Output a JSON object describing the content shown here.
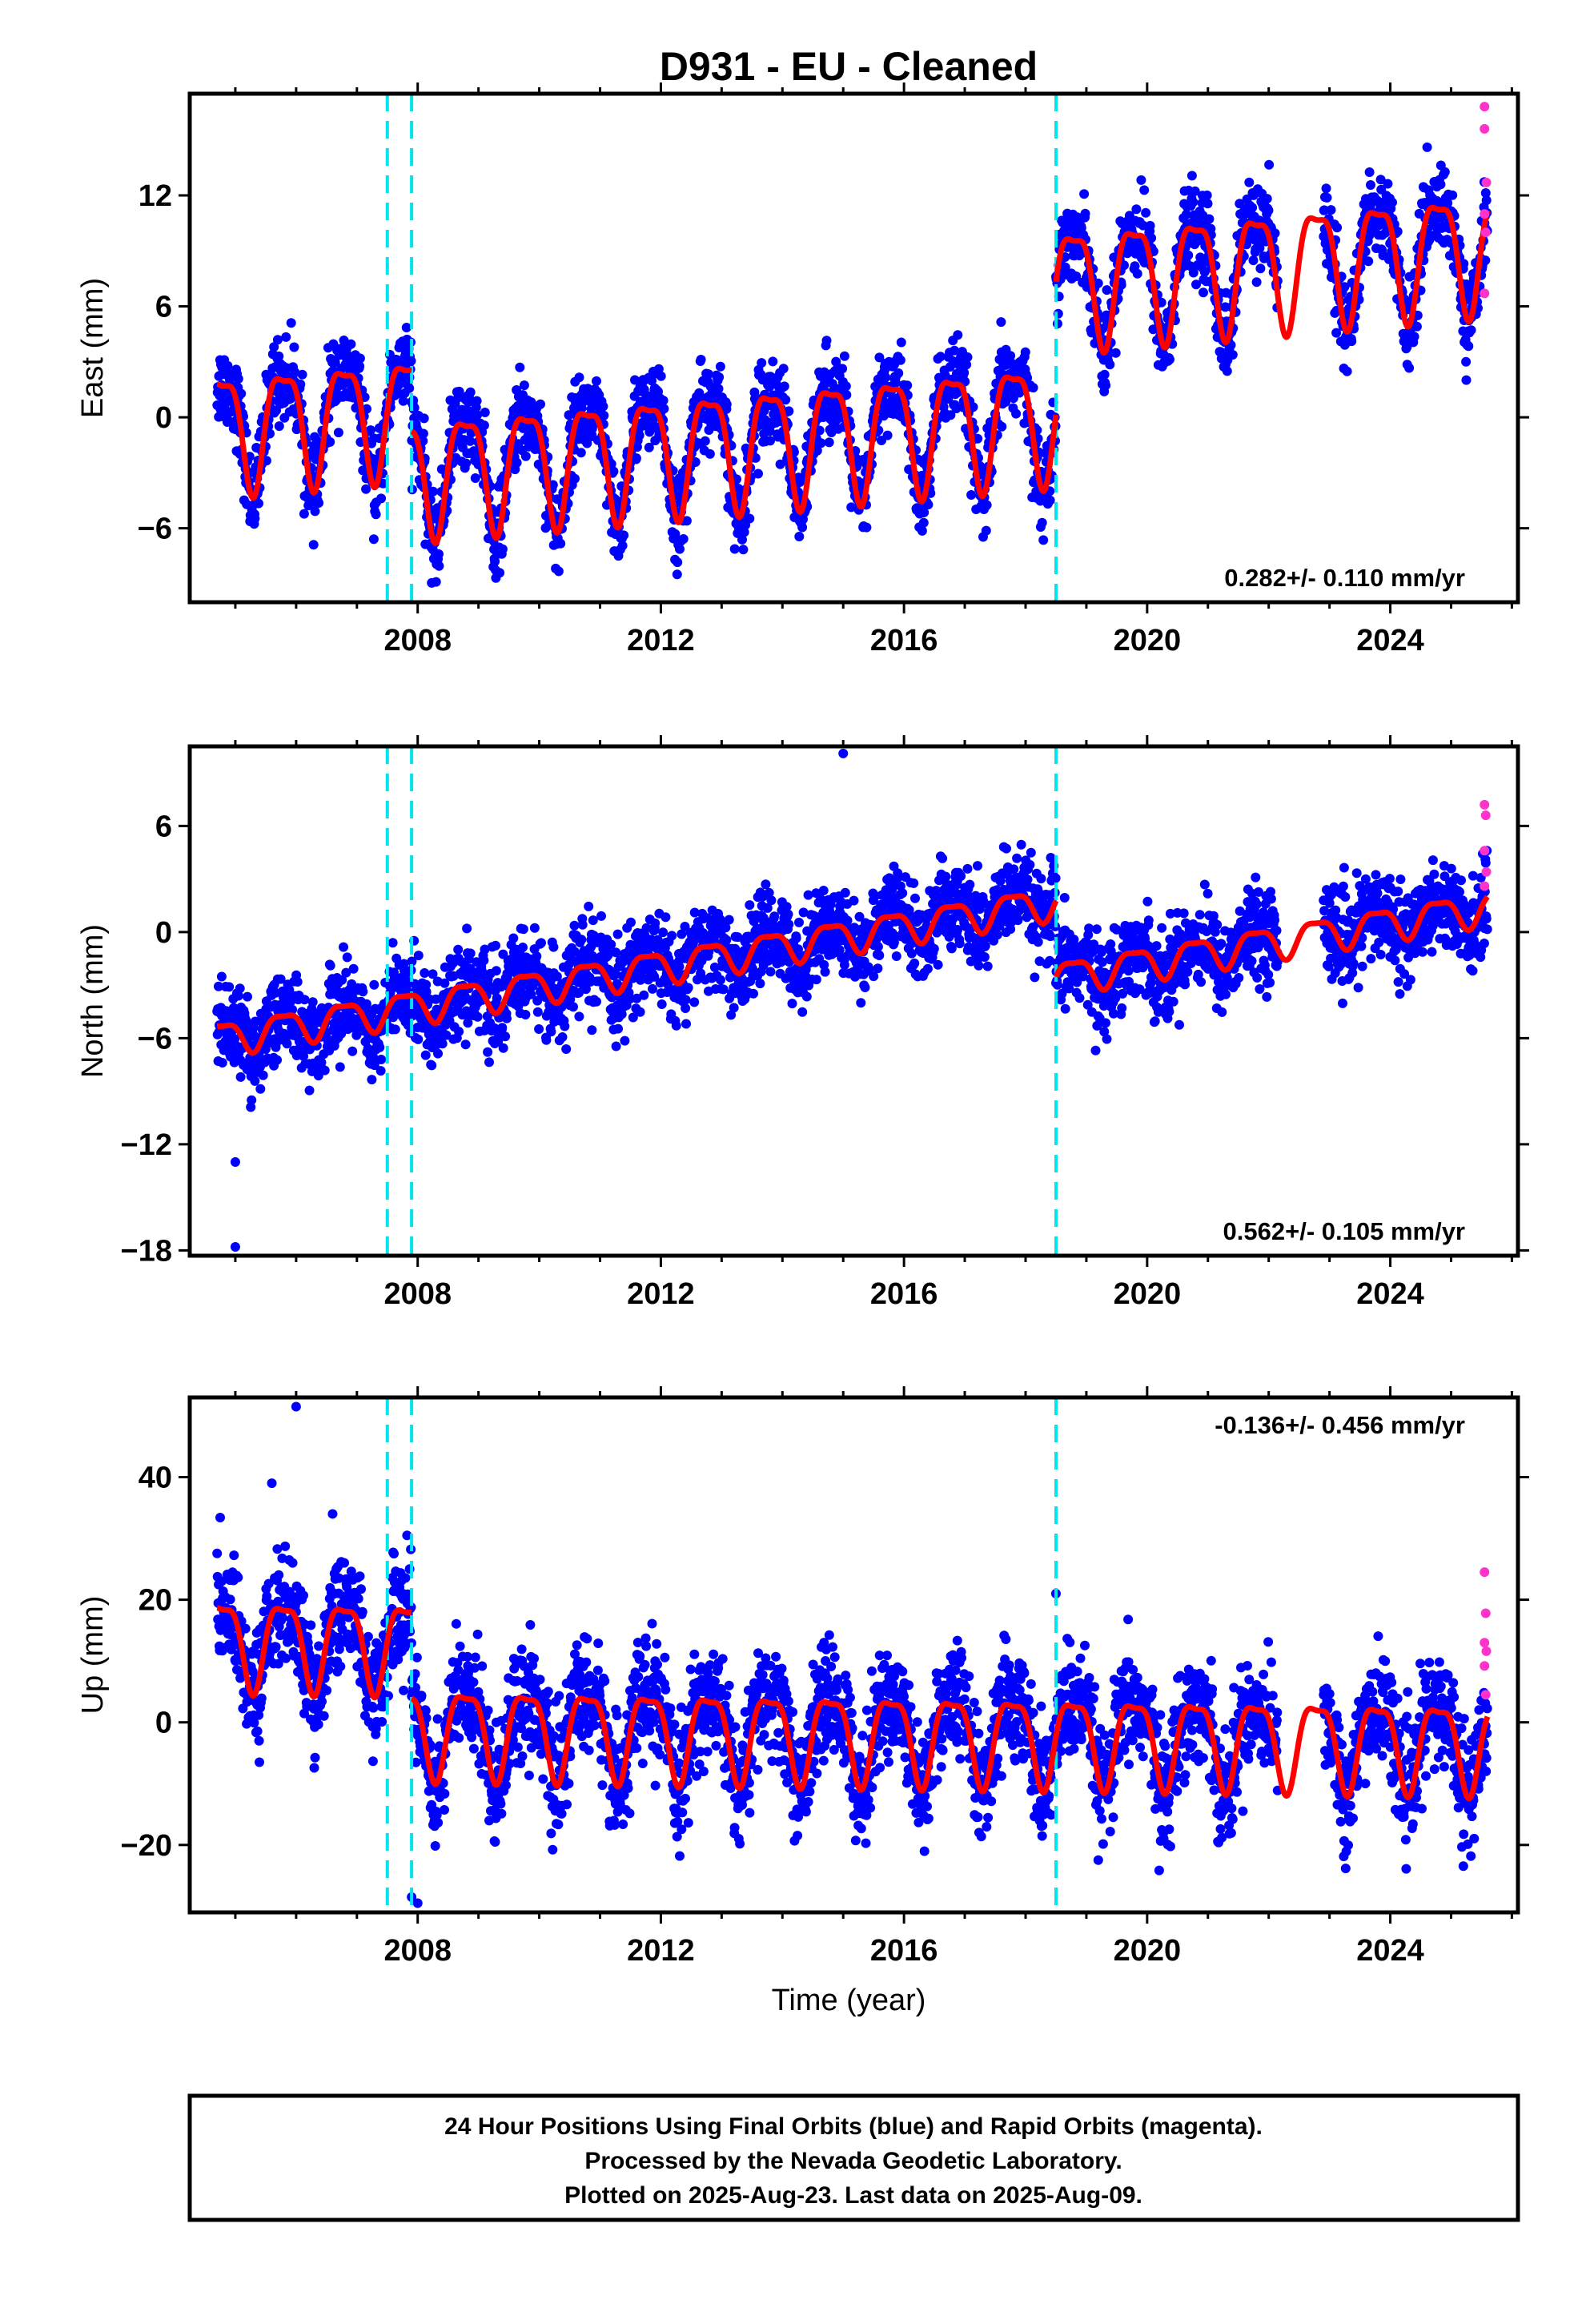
{
  "title": "D931  - EU - Cleaned",
  "xlabel": "Time (year)",
  "footer": {
    "line1": "24 Hour Positions Using Final Orbits (blue) and Rapid Orbits (magenta).",
    "line2": "Processed by the Nevada Geodetic Laboratory.",
    "line3": "Plotted on 2025-Aug-23. Last data on 2025-Aug-09."
  },
  "colors": {
    "final_orbits": "#0000ff",
    "rapid_orbits": "#ff33cc",
    "model_fit": "#ff0000",
    "steps": "#00e5ee"
  },
  "chart_data": [
    {
      "type": "scatter",
      "name": "east",
      "ylabel": "East (mm)",
      "rate_label": "0.282+/- 0.110 mm/yr",
      "xlim": [
        2004.25,
        2026.1
      ],
      "ylim": [
        -10,
        17.5
      ],
      "xticks": [
        2008,
        2012,
        2016,
        2020,
        2024
      ],
      "yticks": [
        -6,
        0,
        6,
        12
      ],
      "step_epochs": [
        2007.5,
        2007.9,
        2018.5
      ],
      "data_start": 2004.7,
      "data_end": 2025.6,
      "fit": {
        "offset": -0.5,
        "rate": 0.282,
        "annual_amp": 3.1,
        "annual_phase": 2.9,
        "steps": [
          {
            "t": 2007.9,
            "dy": -3.3
          },
          {
            "t": 2018.5,
            "dy": 7.2
          }
        ]
      },
      "scatter_sd": 1.1,
      "rapid_points": [
        [
          2025.55,
          16.8
        ],
        [
          2025.55,
          15.6
        ],
        [
          2025.58,
          12.7
        ],
        [
          2025.55,
          11.0
        ],
        [
          2025.57,
          10.0
        ],
        [
          2025.55,
          6.7
        ]
      ]
    },
    {
      "type": "scatter",
      "name": "north",
      "ylabel": "North (mm)",
      "rate_label": "0.562+/- 0.105 mm/yr",
      "xlim": [
        2004.25,
        2026.1
      ],
      "ylim": [
        -18.3,
        10.5
      ],
      "xticks": [
        2008,
        2012,
        2016,
        2020,
        2024
      ],
      "yticks": [
        -18,
        -12,
        -6,
        0,
        6
      ],
      "step_epochs": [
        2007.5,
        2007.9,
        2018.5
      ],
      "data_start": 2004.7,
      "data_end": 2025.6,
      "fit": {
        "offset": -6.0,
        "rate": 0.562,
        "annual_amp": 0.9,
        "annual_phase": 2.9,
        "steps": [
          {
            "t": 2018.5,
            "dy": -4.3
          }
        ]
      },
      "scatter_sd": 1.2,
      "outliers": [
        [
          2005.0,
          -13.0
        ],
        [
          2005.0,
          -17.8
        ],
        [
          2015.0,
          10.1
        ]
      ],
      "rapid_points": [
        [
          2025.55,
          7.2
        ],
        [
          2025.57,
          6.6
        ],
        [
          2025.55,
          4.6
        ],
        [
          2025.58,
          3.4
        ],
        [
          2025.55,
          2.6
        ]
      ]
    },
    {
      "type": "scatter",
      "name": "up",
      "ylabel": "Up (mm)",
      "rate_label": "-0.136+/- 0.456 mm/yr",
      "xlim": [
        2004.25,
        2026.1
      ],
      "ylim": [
        -31,
        53
      ],
      "xticks": [
        2008,
        2012,
        2016,
        2020,
        2024
      ],
      "yticks": [
        -20,
        0,
        20,
        40
      ],
      "step_epochs": [
        2007.5,
        2007.9,
        2018.5
      ],
      "data_start": 2004.7,
      "data_end": 2025.6,
      "fit": {
        "offset": 13.5,
        "rate": -0.136,
        "annual_amp": 7.0,
        "annual_phase": 2.9,
        "steps": [
          {
            "t": 2007.9,
            "dy": -14.0
          }
        ]
      },
      "scatter_sd": 4.5,
      "outliers": [
        [
          2006.0,
          51.5
        ],
        [
          2007.9,
          -28.5
        ],
        [
          2008.0,
          -29.5
        ],
        [
          2005.6,
          39.0
        ],
        [
          2006.6,
          34.0
        ],
        [
          2018.5,
          21.0
        ]
      ],
      "rapid_points": [
        [
          2025.55,
          24.5
        ],
        [
          2025.57,
          17.8
        ],
        [
          2025.55,
          13.0
        ],
        [
          2025.58,
          11.6
        ],
        [
          2025.55,
          9.2
        ],
        [
          2025.57,
          4.5
        ]
      ]
    }
  ]
}
